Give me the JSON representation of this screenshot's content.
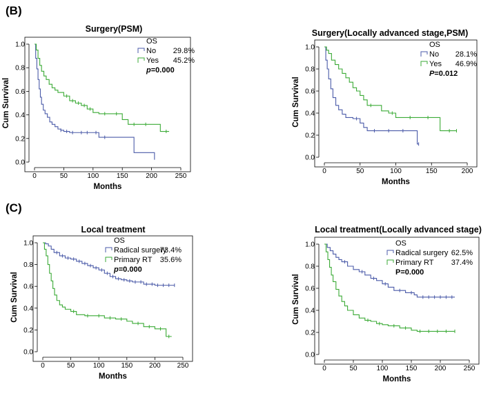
{
  "section_labels": [
    "(B)",
    "(C)"
  ],
  "colors": {
    "no_group": "#4a5aa8",
    "yes_group": "#3aaa35",
    "frame": "#000000"
  },
  "chart_data": [
    {
      "type": "line",
      "title": "Surgery(PSM)",
      "xlabel": "Months",
      "ylabel": "Cum Survival",
      "xlim": [
        0,
        250
      ],
      "ylim": [
        0,
        1.0
      ],
      "xticks": [
        0,
        50,
        100,
        150,
        200,
        250
      ],
      "yticks": [
        0.0,
        0.2,
        0.4,
        0.6,
        0.8,
        1.0
      ],
      "legend": {
        "heading": "OS",
        "p_label": "p",
        "p_text": "=0.000",
        "p_italic": true
      },
      "series": [
        {
          "name": "No",
          "stat": "29.8%",
          "color": "#4a5aa8",
          "x": [
            0,
            2,
            4,
            6,
            8,
            10,
            12,
            15,
            18,
            22,
            26,
            30,
            35,
            40,
            45,
            50,
            60,
            75,
            100,
            110,
            130,
            150,
            170,
            190,
            205
          ],
          "y": [
            1.0,
            0.88,
            0.79,
            0.7,
            0.62,
            0.55,
            0.49,
            0.44,
            0.41,
            0.38,
            0.34,
            0.32,
            0.3,
            0.28,
            0.27,
            0.26,
            0.25,
            0.25,
            0.25,
            0.21,
            0.21,
            0.21,
            0.08,
            0.08,
            0.02
          ],
          "censor_x": [
            45,
            55,
            65,
            80,
            90,
            105,
            120
          ]
        },
        {
          "name": "Yes",
          "stat": "45.2%",
          "color": "#3aaa35",
          "x": [
            0,
            3,
            6,
            9,
            12,
            16,
            20,
            25,
            30,
            35,
            40,
            50,
            60,
            70,
            80,
            90,
            100,
            110,
            130,
            150,
            160,
            180,
            200,
            215,
            230
          ],
          "y": [
            1.0,
            0.95,
            0.88,
            0.82,
            0.77,
            0.73,
            0.7,
            0.66,
            0.63,
            0.61,
            0.59,
            0.56,
            0.52,
            0.5,
            0.48,
            0.45,
            0.42,
            0.41,
            0.41,
            0.36,
            0.32,
            0.32,
            0.32,
            0.26,
            0.26
          ],
          "censor_x": [
            55,
            65,
            75,
            85,
            95,
            120,
            140,
            170,
            190,
            225
          ]
        }
      ]
    },
    {
      "type": "line",
      "title": "Surgery(Locally advanced stage,PSM)",
      "xlabel": "Months",
      "ylabel": "Cum Survival",
      "xlim": [
        0,
        200
      ],
      "ylim": [
        0,
        1.0
      ],
      "xticks": [
        0,
        50,
        100,
        150,
        200
      ],
      "yticks": [
        0.0,
        0.2,
        0.4,
        0.6,
        0.8,
        1.0
      ],
      "legend": {
        "heading": "OS",
        "p_label": "P",
        "p_text": "=0.012",
        "p_italic": true
      },
      "series": [
        {
          "name": "No",
          "stat": "28.1%",
          "color": "#4a5aa8",
          "x": [
            0,
            2,
            4,
            6,
            9,
            12,
            16,
            20,
            25,
            30,
            40,
            50,
            55,
            60,
            80,
            100,
            120,
            130,
            132
          ],
          "y": [
            1.0,
            0.88,
            0.8,
            0.71,
            0.62,
            0.54,
            0.47,
            0.43,
            0.39,
            0.36,
            0.35,
            0.31,
            0.27,
            0.24,
            0.24,
            0.24,
            0.24,
            0.12,
            0.12
          ],
          "censor_x": [
            45,
            70,
            90,
            110,
            132
          ]
        },
        {
          "name": "Yes",
          "stat": "46.9%",
          "color": "#3aaa35",
          "x": [
            0,
            3,
            6,
            10,
            15,
            20,
            25,
            30,
            35,
            40,
            45,
            50,
            55,
            60,
            70,
            80,
            90,
            100,
            130,
            160,
            162,
            185
          ],
          "y": [
            1.0,
            0.97,
            0.94,
            0.88,
            0.84,
            0.8,
            0.76,
            0.72,
            0.68,
            0.63,
            0.6,
            0.56,
            0.52,
            0.47,
            0.47,
            0.42,
            0.4,
            0.36,
            0.36,
            0.36,
            0.24,
            0.24
          ],
          "censor_x": [
            65,
            95,
            120,
            145,
            175,
            185
          ]
        }
      ]
    },
    {
      "type": "line",
      "title": "Local treatment",
      "xlabel": "Months",
      "ylabel": "Cum Survival",
      "xlim": [
        0,
        250
      ],
      "ylim": [
        0,
        1.0
      ],
      "xticks": [
        0,
        50,
        100,
        150,
        200,
        250
      ],
      "yticks": [
        0.0,
        0.2,
        0.4,
        0.6,
        0.8,
        1.0
      ],
      "legend": {
        "heading": "OS",
        "p_label": "p",
        "p_text": "=0.000",
        "p_italic": true
      },
      "series": [
        {
          "name": "Radical surgery",
          "stat": "73.4%",
          "color": "#4a5aa8",
          "x": [
            0,
            5,
            10,
            15,
            20,
            30,
            40,
            50,
            60,
            70,
            80,
            90,
            100,
            110,
            120,
            130,
            140,
            150,
            160,
            170,
            180,
            190,
            200,
            210,
            235
          ],
          "y": [
            1.0,
            0.99,
            0.97,
            0.94,
            0.91,
            0.88,
            0.86,
            0.85,
            0.83,
            0.81,
            0.79,
            0.77,
            0.75,
            0.72,
            0.69,
            0.67,
            0.66,
            0.65,
            0.64,
            0.64,
            0.62,
            0.62,
            0.61,
            0.61,
            0.61
          ],
          "censor_x": [
            25,
            35,
            45,
            55,
            65,
            75,
            85,
            95,
            105,
            115,
            125,
            135,
            145,
            155,
            165,
            175,
            185,
            195,
            205,
            215,
            225,
            235
          ]
        },
        {
          "name": "Primary RT",
          "stat": "35.6%",
          "color": "#3aaa35",
          "x": [
            0,
            3,
            6,
            9,
            12,
            15,
            18,
            21,
            25,
            30,
            35,
            40,
            50,
            60,
            75,
            90,
            110,
            130,
            150,
            160,
            180,
            200,
            215,
            220,
            230
          ],
          "y": [
            1.0,
            0.94,
            0.88,
            0.8,
            0.72,
            0.65,
            0.58,
            0.52,
            0.47,
            0.43,
            0.41,
            0.39,
            0.37,
            0.34,
            0.33,
            0.33,
            0.31,
            0.3,
            0.28,
            0.26,
            0.23,
            0.21,
            0.21,
            0.14,
            0.14
          ],
          "censor_x": [
            55,
            80,
            100,
            120,
            140,
            170,
            190,
            210,
            225
          ]
        }
      ]
    },
    {
      "type": "line",
      "title": "Local treatment(Locally advanced stage)",
      "xlabel": "Months",
      "ylabel": "Cum Survival",
      "xlim": [
        0,
        250
      ],
      "ylim": [
        0,
        1.0
      ],
      "xticks": [
        0,
        50,
        100,
        150,
        200,
        250
      ],
      "yticks": [
        0.0,
        0.2,
        0.4,
        0.6,
        0.8,
        1.0
      ],
      "legend": {
        "heading": "OS",
        "p_label": "P",
        "p_text": "=0.000",
        "p_italic": false
      },
      "series": [
        {
          "name": "Radical surgery",
          "stat": "62.5%",
          "color": "#4a5aa8",
          "x": [
            0,
            5,
            10,
            15,
            20,
            25,
            30,
            40,
            50,
            60,
            70,
            80,
            90,
            100,
            110,
            120,
            140,
            155,
            160,
            200,
            225
          ],
          "y": [
            1.0,
            0.97,
            0.94,
            0.91,
            0.88,
            0.86,
            0.84,
            0.8,
            0.77,
            0.75,
            0.72,
            0.69,
            0.67,
            0.64,
            0.61,
            0.58,
            0.56,
            0.54,
            0.52,
            0.52,
            0.52
          ],
          "censor_x": [
            35,
            65,
            85,
            105,
            130,
            150,
            170,
            180,
            190,
            200,
            210,
            220
          ]
        },
        {
          "name": "Primary RT",
          "stat": "37.4%",
          "color": "#3aaa35",
          "x": [
            0,
            3,
            6,
            9,
            12,
            15,
            20,
            25,
            30,
            35,
            40,
            50,
            60,
            70,
            80,
            90,
            100,
            110,
            130,
            150,
            160,
            225
          ],
          "y": [
            1.0,
            0.93,
            0.86,
            0.79,
            0.72,
            0.66,
            0.59,
            0.53,
            0.48,
            0.44,
            0.4,
            0.36,
            0.33,
            0.31,
            0.3,
            0.28,
            0.27,
            0.26,
            0.24,
            0.22,
            0.21,
            0.21
          ],
          "censor_x": [
            75,
            95,
            120,
            140,
            165,
            180,
            195,
            210,
            225
          ]
        }
      ]
    }
  ]
}
